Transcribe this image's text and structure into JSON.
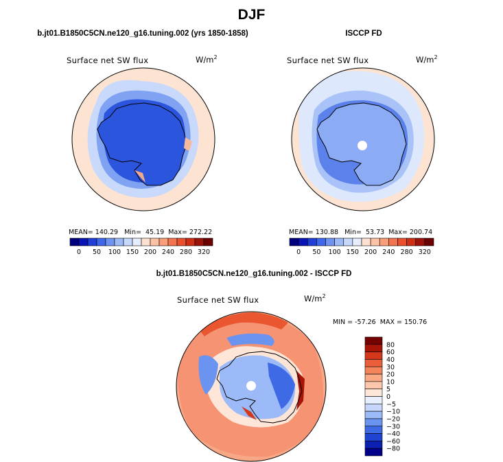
{
  "figure": {
    "season": "DJF",
    "colors": {
      "model_scale": [
        "#00007f",
        "#0a14b5",
        "#1f3fd6",
        "#3f67ea",
        "#6f93f0",
        "#9ebaf6",
        "#c6d8fb",
        "#e6eefd",
        "#fde0cf",
        "#fbc2a5",
        "#f89e78",
        "#f37550",
        "#e9502e",
        "#cc2f14",
        "#9a1208",
        "#6a0000"
      ],
      "diff_scale": [
        "#00008a",
        "#0b1fb0",
        "#1f44d2",
        "#3e6ae6",
        "#6b93f0",
        "#9bbaf7",
        "#c6d7fb",
        "#e8effd",
        "#fde6d8",
        "#fcc8ad",
        "#f9a983",
        "#f3845b",
        "#ea5f39",
        "#d3381b",
        "#a81508",
        "#750000"
      ]
    }
  },
  "panels": [
    {
      "title": "b.jt01.B1850C5CN.ne120_g16.tuning.002 (yrs 1850-1858)",
      "label": "Surface net SW flux",
      "units": "W/m",
      "units_sup": "2",
      "stats": {
        "mean_label": "MEAN=",
        "mean": "140.29",
        "min_label": "Min=",
        "min": "45.19",
        "max_label": "Max=",
        "max": "272.22"
      }
    },
    {
      "title": "ISCCP FD",
      "label": "Surface net SW flux",
      "units": "W/m",
      "units_sup": "2",
      "stats": {
        "mean_label": "MEAN=",
        "mean": "130.88",
        "min_label": "Min=",
        "min": "53.73",
        "max_label": "Max=",
        "max": "200.74"
      }
    },
    {
      "title": "b.jt01.B1850C5CN.ne120_g16.tuning.002 - ISCCP FD",
      "label": "Surface net SW flux",
      "units": "W/m",
      "units_sup": "2",
      "stats_text": "MIN = -57.26  MAX = 150.76"
    }
  ],
  "chart_data": [
    {
      "type": "heatmap",
      "projection": "south polar stereographic",
      "title": "b.jt01.B1850C5CN.ne120_g16.tuning.002 (yrs 1850-1858)",
      "variable": "Surface net SW flux",
      "units": "W/m2",
      "mean": 140.29,
      "min": 45.19,
      "max": 272.22,
      "colorbar_ticks": [
        0,
        50,
        100,
        150,
        200,
        240,
        280,
        320
      ],
      "colorbar_labels": [
        "0",
        "50",
        "100",
        "150",
        "200",
        "240",
        "280",
        "320"
      ]
    },
    {
      "type": "heatmap",
      "projection": "south polar stereographic",
      "title": "ISCCP FD",
      "variable": "Surface net SW flux",
      "units": "W/m2",
      "mean": 130.88,
      "min": 53.73,
      "max": 200.74,
      "colorbar_ticks": [
        0,
        50,
        100,
        150,
        200,
        240,
        280,
        320
      ],
      "colorbar_labels": [
        "0",
        "50",
        "100",
        "150",
        "200",
        "240",
        "280",
        "320"
      ]
    },
    {
      "type": "heatmap",
      "projection": "south polar stereographic",
      "title": "b.jt01.B1850C5CN.ne120_g16.tuning.002 - ISCCP FD",
      "variable": "Surface net SW flux",
      "units": "W/m2",
      "min": -57.26,
      "max": 150.76,
      "colorbar_ticks": [
        80,
        60,
        40,
        30,
        20,
        10,
        5,
        0,
        -5,
        -10,
        -20,
        -30,
        -40,
        -60,
        -80
      ],
      "colorbar_labels": [
        "80",
        "60",
        "40",
        "30",
        "20",
        "10",
        "5",
        "0",
        "−5",
        "−10",
        "−20",
        "−30",
        "−40",
        "−60",
        "−80"
      ]
    }
  ]
}
